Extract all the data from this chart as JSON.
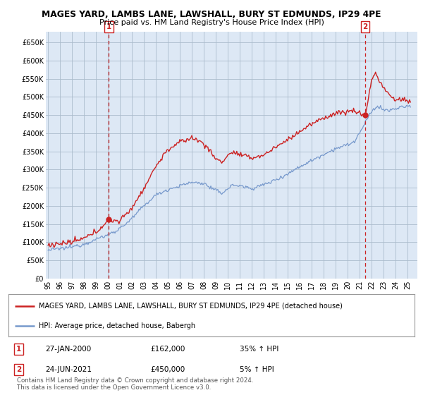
{
  "title": "MAGES YARD, LAMBS LANE, LAWSHALL, BURY ST EDMUNDS, IP29 4PE",
  "subtitle": "Price paid vs. HM Land Registry's House Price Index (HPI)",
  "ylabel_ticks": [
    "£0",
    "£50K",
    "£100K",
    "£150K",
    "£200K",
    "£250K",
    "£300K",
    "£350K",
    "£400K",
    "£450K",
    "£500K",
    "£550K",
    "£600K",
    "£650K"
  ],
  "ytick_values": [
    0,
    50000,
    100000,
    150000,
    200000,
    250000,
    300000,
    350000,
    400000,
    450000,
    500000,
    550000,
    600000,
    650000
  ],
  "ylim": [
    0,
    680000
  ],
  "xlim_start": 1994.8,
  "xlim_end": 2025.8,
  "background_color": "#ffffff",
  "chart_bg_color": "#dde8f5",
  "grid_color": "#aabbcc",
  "hpi_color": "#7799cc",
  "price_color": "#cc2222",
  "sale1_x": 2000.07,
  "sale1_y": 162000,
  "sale2_x": 2021.48,
  "sale2_y": 450000,
  "legend_text1": "MAGES YARD, LAMBS LANE, LAWSHALL, BURY ST EDMUNDS, IP29 4PE (detached house)",
  "legend_text2": "HPI: Average price, detached house, Babergh",
  "note1_label": "1",
  "note1_date": "27-JAN-2000",
  "note1_price": "£162,000",
  "note1_hpi": "35% ↑ HPI",
  "note2_label": "2",
  "note2_date": "24-JUN-2021",
  "note2_price": "£450,000",
  "note2_hpi": "5% ↑ HPI",
  "footer": "Contains HM Land Registry data © Crown copyright and database right 2024.\nThis data is licensed under the Open Government Licence v3.0.",
  "hpi_key_points": {
    "1995.0": 78000,
    "1996.0": 82000,
    "1997.0": 87000,
    "1998.0": 95000,
    "1999.0": 108000,
    "2000.0": 120000,
    "2001.0": 138000,
    "2002.0": 165000,
    "2003.0": 200000,
    "2004.0": 230000,
    "2005.0": 245000,
    "2006.0": 255000,
    "2007.0": 265000,
    "2008.0": 262000,
    "2008.8": 245000,
    "2009.5": 235000,
    "2010.0": 248000,
    "2010.5": 258000,
    "2011.0": 255000,
    "2012.0": 248000,
    "2013.0": 258000,
    "2014.0": 272000,
    "2015.0": 288000,
    "2016.0": 308000,
    "2017.0": 325000,
    "2018.0": 342000,
    "2019.0": 358000,
    "2020.0": 368000,
    "2020.5": 375000,
    "2021.0": 400000,
    "2021.5": 430000,
    "2022.0": 460000,
    "2022.5": 475000,
    "2023.0": 465000,
    "2023.5": 462000,
    "2024.0": 468000,
    "2024.5": 472000,
    "2025.3": 475000
  },
  "price_key_points": {
    "1995.0": 92000,
    "1996.0": 96000,
    "1997.0": 100000,
    "1998.0": 110000,
    "1999.0": 128000,
    "2000.07": 162000,
    "2001.0": 158000,
    "2002.0": 195000,
    "2003.0": 248000,
    "2004.0": 310000,
    "2005.0": 355000,
    "2006.0": 375000,
    "2007.0": 388000,
    "2008.0": 372000,
    "2009.0": 330000,
    "2009.5": 320000,
    "2010.0": 340000,
    "2010.5": 348000,
    "2011.0": 340000,
    "2012.0": 332000,
    "2013.0": 340000,
    "2014.0": 362000,
    "2015.0": 382000,
    "2016.0": 405000,
    "2017.0": 425000,
    "2018.0": 442000,
    "2019.0": 455000,
    "2020.0": 460000,
    "2020.5": 462000,
    "2021.0": 455000,
    "2021.48": 450000,
    "2022.0": 545000,
    "2022.3": 568000,
    "2022.6": 548000,
    "2023.0": 525000,
    "2023.5": 505000,
    "2024.0": 490000,
    "2024.5": 495000,
    "2025.3": 485000
  }
}
